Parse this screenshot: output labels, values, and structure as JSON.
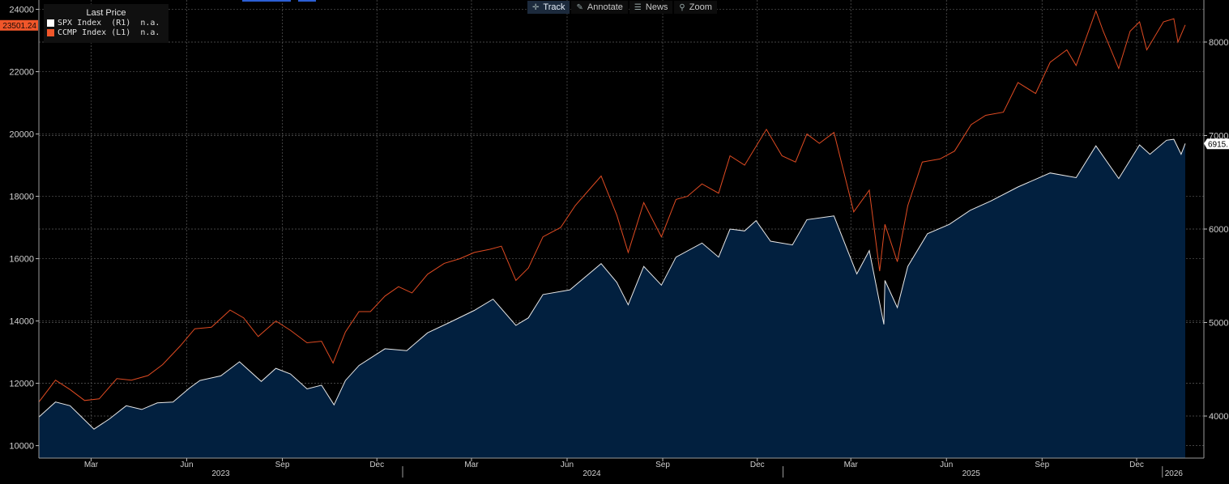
{
  "toolbar": {
    "items": [
      {
        "label": "Track",
        "icon": "crosshair-icon"
      },
      {
        "label": "Annotate",
        "icon": "pencil-icon"
      },
      {
        "label": "News",
        "icon": "news-icon"
      },
      {
        "label": "Zoom",
        "icon": "magnifier-icon"
      }
    ]
  },
  "legend": {
    "title": "Last Price",
    "entries": [
      {
        "label": "SPX Index  (R1)  n.a.",
        "color": "#ffffff"
      },
      {
        "label": "CCMP Index (L1)  n.a.",
        "color": "#f0562a"
      }
    ]
  },
  "badges": {
    "left": {
      "text": "23501.24",
      "color": "#f0562a"
    },
    "right": {
      "text": "6915.",
      "color": "#ffffff"
    }
  },
  "colors": {
    "background": "#000000",
    "area_fill": "#02203f",
    "ccmp_line": "#e04b22",
    "spx_line": "#e8e8e8",
    "grid": "#5a5a5a"
  },
  "chart_data": {
    "type": "line",
    "x_months": [
      "Mar",
      "Jun",
      "Sep",
      "Dec",
      "Mar",
      "Jun",
      "Sep",
      "Dec",
      "Mar",
      "Jun",
      "Sep",
      "Dec"
    ],
    "x_years": [
      "2023",
      "2024",
      "2025",
      "2026"
    ],
    "x_range": [
      "2023-01-16",
      "2026-01-23"
    ],
    "left_axis": {
      "ticks": [
        10000,
        12000,
        14000,
        16000,
        18000,
        20000,
        22000,
        24000
      ],
      "range": [
        9600,
        24300
      ]
    },
    "right_axis": {
      "ticks": [
        4000,
        5000,
        6000,
        7000,
        8000
      ],
      "range": [
        3550,
        8450
      ]
    },
    "grid": true,
    "series": [
      {
        "name": "CCMP Index",
        "axis": "left",
        "style": "line",
        "points": [
          [
            "2023-01-16",
            11400
          ],
          [
            "2023-02-01",
            12100
          ],
          [
            "2023-02-15",
            11800
          ],
          [
            "2023-03-01",
            11450
          ],
          [
            "2023-03-15",
            11500
          ],
          [
            "2023-04-01",
            12150
          ],
          [
            "2023-04-15",
            12100
          ],
          [
            "2023-05-01",
            12250
          ],
          [
            "2023-05-15",
            12600
          ],
          [
            "2023-06-01",
            13200
          ],
          [
            "2023-06-15",
            13750
          ],
          [
            "2023-07-01",
            13800
          ],
          [
            "2023-07-19",
            14350
          ],
          [
            "2023-08-01",
            14100
          ],
          [
            "2023-08-15",
            13500
          ],
          [
            "2023-09-01",
            14000
          ],
          [
            "2023-09-15",
            13700
          ],
          [
            "2023-10-01",
            13300
          ],
          [
            "2023-10-15",
            13350
          ],
          [
            "2023-10-26",
            12650
          ],
          [
            "2023-11-07",
            13650
          ],
          [
            "2023-11-20",
            14300
          ],
          [
            "2023-12-01",
            14300
          ],
          [
            "2023-12-15",
            14800
          ],
          [
            "2023-12-28",
            15100
          ],
          [
            "2024-01-10",
            14900
          ],
          [
            "2024-01-25",
            15500
          ],
          [
            "2024-02-10",
            15850
          ],
          [
            "2024-02-25",
            16000
          ],
          [
            "2024-03-10",
            16200
          ],
          [
            "2024-03-25",
            16300
          ],
          [
            "2024-04-05",
            16400
          ],
          [
            "2024-04-19",
            15300
          ],
          [
            "2024-05-01",
            15700
          ],
          [
            "2024-05-15",
            16700
          ],
          [
            "2024-06-01",
            17000
          ],
          [
            "2024-06-15",
            17700
          ],
          [
            "2024-07-10",
            18650
          ],
          [
            "2024-07-25",
            17400
          ],
          [
            "2024-08-05",
            16200
          ],
          [
            "2024-08-20",
            17800
          ],
          [
            "2024-09-06",
            16700
          ],
          [
            "2024-09-20",
            17900
          ],
          [
            "2024-10-01",
            18000
          ],
          [
            "2024-10-15",
            18400
          ],
          [
            "2024-10-31",
            18100
          ],
          [
            "2024-11-11",
            19300
          ],
          [
            "2024-11-25",
            19000
          ],
          [
            "2024-12-16",
            20150
          ],
          [
            "2024-12-31",
            19300
          ],
          [
            "2025-01-13",
            19100
          ],
          [
            "2025-01-24",
            20000
          ],
          [
            "2025-02-05",
            19700
          ],
          [
            "2025-02-19",
            20050
          ],
          [
            "2025-03-10",
            17500
          ],
          [
            "2025-03-25",
            18200
          ],
          [
            "2025-04-04",
            15600
          ],
          [
            "2025-04-09",
            17100
          ],
          [
            "2025-04-21",
            15900
          ],
          [
            "2025-05-01",
            17700
          ],
          [
            "2025-05-15",
            19100
          ],
          [
            "2025-06-01",
            19200
          ],
          [
            "2025-06-15",
            19450
          ],
          [
            "2025-07-01",
            20300
          ],
          [
            "2025-07-15",
            20600
          ],
          [
            "2025-08-01",
            20700
          ],
          [
            "2025-08-15",
            21650
          ],
          [
            "2025-09-01",
            21300
          ],
          [
            "2025-09-15",
            22300
          ],
          [
            "2025-10-01",
            22700
          ],
          [
            "2025-10-10",
            22200
          ],
          [
            "2025-10-29",
            23950
          ],
          [
            "2025-11-05",
            23300
          ],
          [
            "2025-11-20",
            22100
          ],
          [
            "2025-12-01",
            23300
          ],
          [
            "2025-12-10",
            23600
          ],
          [
            "2025-12-17",
            22700
          ],
          [
            "2026-01-02",
            23600
          ],
          [
            "2026-01-12",
            23700
          ],
          [
            "2026-01-16",
            22950
          ],
          [
            "2026-01-23",
            23500
          ]
        ]
      },
      {
        "name": "SPX Index",
        "axis": "right",
        "style": "area",
        "points": [
          [
            "2023-01-16",
            3990
          ],
          [
            "2023-02-01",
            4150
          ],
          [
            "2023-02-15",
            4110
          ],
          [
            "2023-03-10",
            3860
          ],
          [
            "2023-03-25",
            3970
          ],
          [
            "2023-04-10",
            4110
          ],
          [
            "2023-04-25",
            4070
          ],
          [
            "2023-05-10",
            4140
          ],
          [
            "2023-05-25",
            4150
          ],
          [
            "2023-06-10",
            4300
          ],
          [
            "2023-06-20",
            4380
          ],
          [
            "2023-07-10",
            4430
          ],
          [
            "2023-07-28",
            4580
          ],
          [
            "2023-08-18",
            4370
          ],
          [
            "2023-09-01",
            4510
          ],
          [
            "2023-09-15",
            4450
          ],
          [
            "2023-10-01",
            4290
          ],
          [
            "2023-10-15",
            4330
          ],
          [
            "2023-10-27",
            4120
          ],
          [
            "2023-11-07",
            4380
          ],
          [
            "2023-11-20",
            4540
          ],
          [
            "2023-12-15",
            4720
          ],
          [
            "2024-01-05",
            4700
          ],
          [
            "2024-01-25",
            4890
          ],
          [
            "2024-02-15",
            5000
          ],
          [
            "2024-03-10",
            5130
          ],
          [
            "2024-03-28",
            5250
          ],
          [
            "2024-04-19",
            4970
          ],
          [
            "2024-05-01",
            5050
          ],
          [
            "2024-05-15",
            5300
          ],
          [
            "2024-06-10",
            5350
          ],
          [
            "2024-07-10",
            5630
          ],
          [
            "2024-07-25",
            5430
          ],
          [
            "2024-08-05",
            5190
          ],
          [
            "2024-08-20",
            5600
          ],
          [
            "2024-09-06",
            5400
          ],
          [
            "2024-09-20",
            5700
          ],
          [
            "2024-10-15",
            5850
          ],
          [
            "2024-10-31",
            5700
          ],
          [
            "2024-11-11",
            6000
          ],
          [
            "2024-11-25",
            5980
          ],
          [
            "2024-12-06",
            6090
          ],
          [
            "2024-12-20",
            5870
          ],
          [
            "2025-01-10",
            5830
          ],
          [
            "2025-01-24",
            6100
          ],
          [
            "2025-02-19",
            6140
          ],
          [
            "2025-03-13",
            5520
          ],
          [
            "2025-03-25",
            5770
          ],
          [
            "2025-04-08",
            4980
          ],
          [
            "2025-04-09",
            5450
          ],
          [
            "2025-04-21",
            5160
          ],
          [
            "2025-05-01",
            5600
          ],
          [
            "2025-05-20",
            5950
          ],
          [
            "2025-06-10",
            6050
          ],
          [
            "2025-06-30",
            6200
          ],
          [
            "2025-07-20",
            6300
          ],
          [
            "2025-08-15",
            6450
          ],
          [
            "2025-09-15",
            6600
          ],
          [
            "2025-10-10",
            6550
          ],
          [
            "2025-10-29",
            6890
          ],
          [
            "2025-11-20",
            6540
          ],
          [
            "2025-12-10",
            6900
          ],
          [
            "2025-12-20",
            6800
          ],
          [
            "2026-01-05",
            6950
          ],
          [
            "2026-01-12",
            6960
          ],
          [
            "2026-01-19",
            6800
          ],
          [
            "2026-01-23",
            6915
          ]
        ]
      }
    ]
  }
}
